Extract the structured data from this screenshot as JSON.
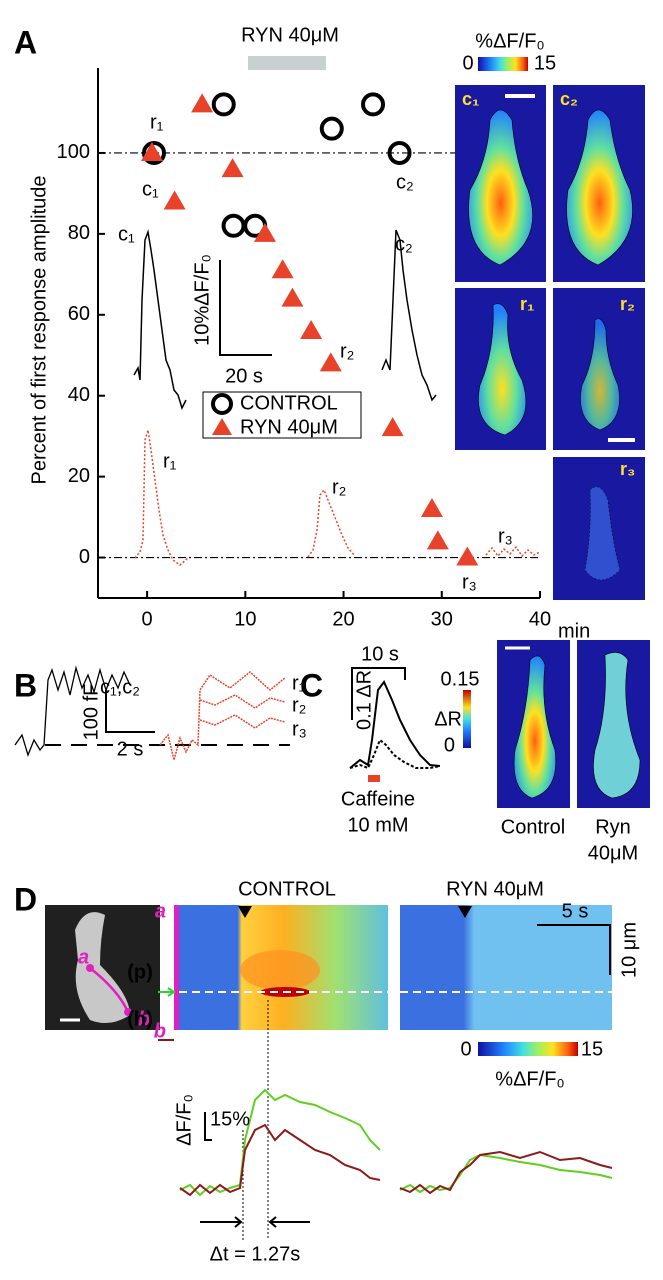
{
  "panel_a": {
    "label": "A",
    "drug_bar": "RYN 40μM",
    "colorbar_title": "%ΔF/F₀",
    "colorbar_min": "0",
    "colorbar_max": "15",
    "point_labels": [
      "r₁",
      "c₁",
      "c₂"
    ],
    "trace_labels": [
      "c₁",
      "r₁",
      "r₂",
      "c₂",
      "r₂",
      "r₃",
      "r₃"
    ],
    "scale_y": "10%ΔF/F₀",
    "scale_x": "20 s",
    "image_labels": [
      "c₁",
      "c₂",
      "r₁",
      "r₂",
      "r₃"
    ]
  },
  "chart_data": {
    "type": "scatter",
    "y_label": "Percent of first response amplitude",
    "x_label": "min",
    "xlim": [
      -5,
      40
    ],
    "ylim": [
      -10,
      121
    ],
    "xticks": [
      0,
      10,
      20,
      30,
      40
    ],
    "yticks": [
      0,
      20,
      40,
      60,
      80,
      100
    ],
    "reference_lines": [
      100,
      0
    ],
    "series": [
      {
        "name": "CONTROL",
        "color": "#000000",
        "marker": "circle",
        "x": [
          0.7,
          7.8,
          8.8,
          11,
          18.8,
          23,
          25.7
        ],
        "values": [
          100,
          112,
          82,
          82,
          106,
          112,
          100
        ]
      },
      {
        "name": "RYN 40μM",
        "color": "#e8432a",
        "marker": "triangle",
        "x": [
          0.5,
          2.8,
          5.6,
          8.7,
          12,
          13.8,
          14.8,
          16.7,
          18.7,
          25,
          29,
          29.6,
          32.6
        ],
        "values": [
          100,
          88,
          112,
          96,
          80,
          71,
          64,
          56,
          48,
          32,
          12,
          4,
          0
        ]
      }
    ]
  },
  "panel_b": {
    "label": "B",
    "trace_labels": [
      "c₁,c₂",
      "r₁",
      "r₂",
      "r₃"
    ],
    "scale_y": "100 fF",
    "scale_x": "2 s"
  },
  "panel_c": {
    "label": "C",
    "scale_x": "10 s",
    "scale_y": "0.1 ΔR",
    "stimulus": [
      "Caffeine",
      "10 mM"
    ],
    "colorbar_max": "0.15",
    "colorbar_title": "ΔR",
    "colorbar_min": "0",
    "image_labels": [
      "Control",
      "Ryn",
      "40μM"
    ]
  },
  "panel_d": {
    "label": "D",
    "conditions": [
      "CONTROL",
      "RYN 40μM"
    ],
    "scale_x": "5 s",
    "scale_y": "10 μm",
    "line_ends": [
      "a",
      "b",
      "a",
      "b"
    ],
    "regions": [
      "(p)",
      "(h)"
    ],
    "colorbar_min": "0",
    "colorbar_max": "15",
    "colorbar_title": "%ΔF/F₀",
    "trace_scale_title": "ΔF/F₀",
    "trace_scale": "15%",
    "delay": "Δt = 1.27s"
  }
}
